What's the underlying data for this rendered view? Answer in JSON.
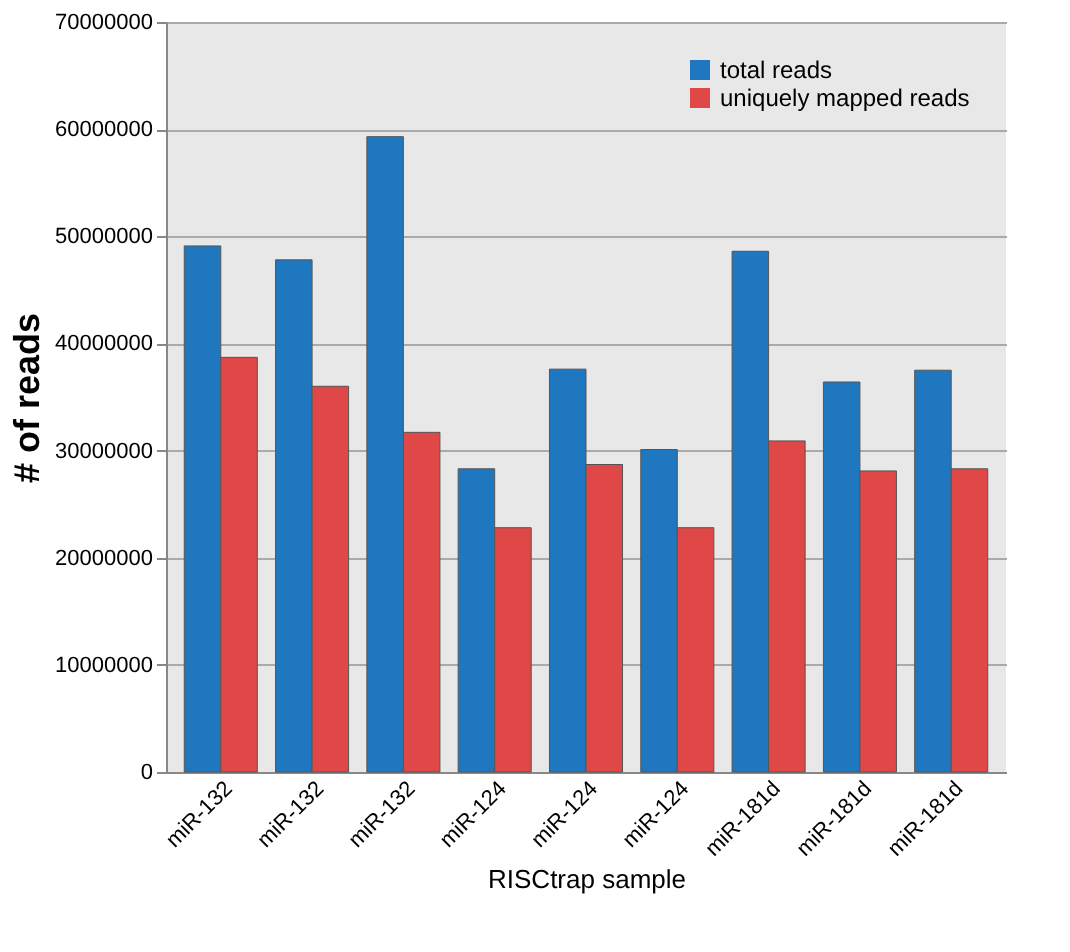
{
  "chart_data": {
    "type": "bar",
    "xlabel": "RISCtrap sample",
    "ylabel": "# of reads",
    "categories": [
      "miR-132",
      "miR-132",
      "miR-132",
      "miR-124",
      "miR-124",
      "miR-124",
      "miR-181d",
      "miR-181d",
      "miR-181d"
    ],
    "series": [
      {
        "name": "total reads",
        "color": "#1f77c0",
        "values": [
          49100000,
          47800000,
          59300000,
          28300000,
          37600000,
          30100000,
          48600000,
          36400000,
          37500000
        ]
      },
      {
        "name": "uniquely mapped reads",
        "color": "#e04848",
        "values": [
          38700000,
          36000000,
          31700000,
          22800000,
          28700000,
          22800000,
          30900000,
          28100000,
          28300000
        ]
      }
    ],
    "ylim": [
      0,
      70000000
    ],
    "yticks": [
      0,
      10000000,
      20000000,
      30000000,
      40000000,
      50000000,
      60000000,
      70000000
    ],
    "grid": "y",
    "legend": "top right"
  }
}
